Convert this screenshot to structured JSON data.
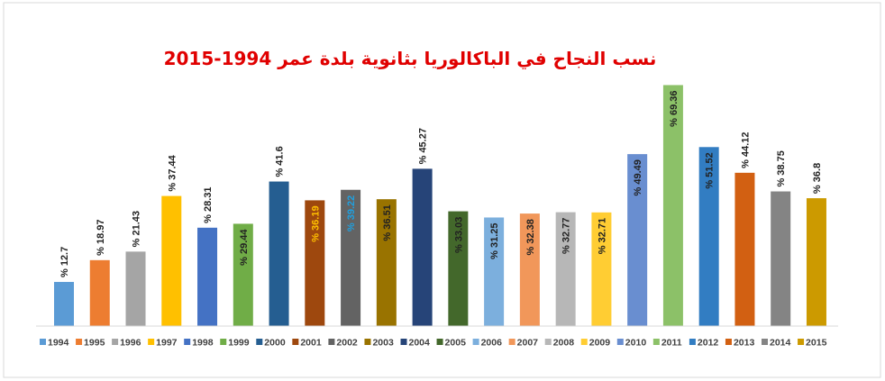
{
  "chart_data": {
    "type": "bar",
    "title": "نسب النجاح في الباكالوريا بثانوية بلدة عمر 1994-2015",
    "categories": [
      "1994",
      "1995",
      "1996",
      "1997",
      "1998",
      "1999",
      "2000",
      "2001",
      "2002",
      "2003",
      "2004",
      "2005",
      "2006",
      "2007",
      "2008",
      "2009",
      "2010",
      "2011",
      "2012",
      "2013",
      "2014",
      "2015"
    ],
    "values": [
      12.7,
      18.97,
      21.43,
      37.44,
      28.31,
      29.44,
      41.6,
      36.19,
      39.22,
      36.51,
      45.27,
      33.03,
      31.25,
      32.38,
      32.77,
      32.71,
      49.49,
      69.36,
      51.52,
      44.12,
      38.75,
      36.8
    ],
    "value_labels": [
      "% 12.7",
      "% 18.97",
      "% 21.43",
      "% 37.44",
      "% 28.31",
      "% 29.44",
      "% 41.6",
      "% 36.19",
      "% 39.22",
      "% 36.51",
      "% 45.27",
      "% 33.03",
      "% 31.25",
      "% 32.38",
      "% 32.77",
      "% 32.71",
      "% 49.49",
      "% 69.36",
      "% 51.52",
      "% 44.12",
      "% 38.75",
      "% 36.8"
    ],
    "colors": [
      "#5b9bd5",
      "#ed7d31",
      "#a5a5a5",
      "#ffc000",
      "#4472c4",
      "#70ad47",
      "#255e91",
      "#9e480e",
      "#636363",
      "#997300",
      "#264478",
      "#43682b",
      "#7cafdd",
      "#f1975a",
      "#b7b7b7",
      "#ffcd33",
      "#698ed0",
      "#8cc168",
      "#327dc2",
      "#d26012",
      "#848484",
      "#cc9a00"
    ],
    "ylim": [
      0,
      70
    ]
  }
}
